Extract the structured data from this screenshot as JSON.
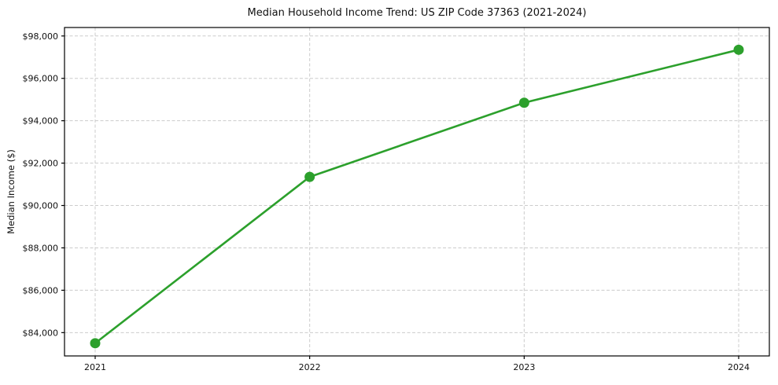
{
  "figure": {
    "background": "#ffffff"
  },
  "chart_data": {
    "type": "line",
    "title": "Median Household Income Trend: US ZIP Code 37363 (2021-2024)",
    "xlabel": "",
    "ylabel": "Median Income ($)",
    "x": [
      2021,
      2022,
      2023,
      2024
    ],
    "series": [
      {
        "name": "Median Household Income",
        "values": [
          83500,
          91350,
          94850,
          97350
        ],
        "color": "#2ca02c",
        "marker": "circle"
      }
    ],
    "xlim": [
      2020.857,
      2024.143
    ],
    "ylim": [
      82900,
      98400
    ],
    "xticks": {
      "values": [
        2021,
        2022,
        2023,
        2024
      ],
      "labels": [
        "2021",
        "2022",
        "2023",
        "2024"
      ]
    },
    "yticks": {
      "values": [
        84000,
        86000,
        88000,
        90000,
        92000,
        94000,
        96000,
        98000
      ],
      "labels": [
        "$84,000",
        "$86,000",
        "$88,000",
        "$90,000",
        "$92,000",
        "$94,000",
        "$96,000",
        "$98,000"
      ]
    },
    "grid": {
      "visible": true,
      "style": "dashed",
      "color": "#cccccc"
    },
    "legend": "none",
    "styles": {
      "line_width": 2.6,
      "marker_radius": 6.5,
      "spine_color": "#000000",
      "tick_label_color": "#111111",
      "tick_font_size": 11
    }
  }
}
